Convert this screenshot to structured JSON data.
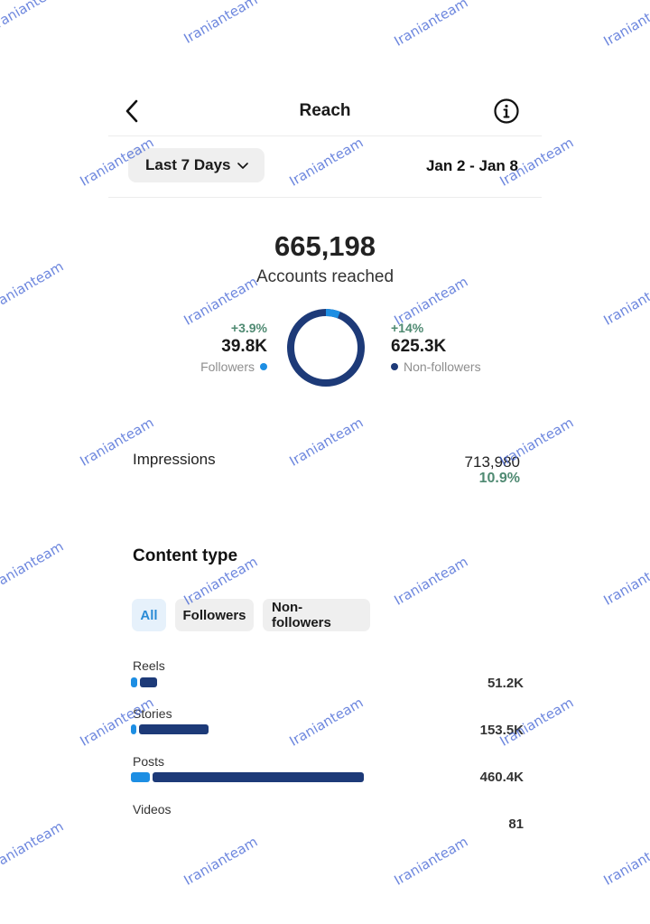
{
  "header": {
    "title": "Reach"
  },
  "filters": {
    "range_label": "Last 7 Days",
    "date_range": "Jan 2 - Jan 8"
  },
  "summary": {
    "total": "665,198",
    "total_label": "Accounts reached"
  },
  "split": {
    "followers": {
      "growth": "+3.9%",
      "value": "39.8K",
      "label": "Followers",
      "color": "#1d8ee3",
      "share": 0.06
    },
    "non_followers": {
      "growth": "+14%",
      "value": "625.3K",
      "label": "Non-followers",
      "color": "#1d3a78",
      "share": 0.94
    }
  },
  "impressions": {
    "label": "Impressions",
    "value": "713,980",
    "growth": "10.9%"
  },
  "content_type": {
    "title": "Content type",
    "tabs": [
      "All",
      "Followers",
      "Non-followers"
    ],
    "active_tab": "All",
    "max_value": 460.4,
    "items": [
      {
        "label": "Reels",
        "value": "51.2K",
        "value_k": 51.2,
        "followers_share": 0.26
      },
      {
        "label": "Stories",
        "value": "153.5K",
        "value_k": 153.5,
        "followers_share": 0.07
      },
      {
        "label": "Posts",
        "value": "460.4K",
        "value_k": 460.4,
        "followers_share": 0.08
      },
      {
        "label": "Videos",
        "value": "81",
        "value_k": 0.081,
        "followers_share": 0
      }
    ]
  },
  "watermark": {
    "text": "Iranianteam"
  }
}
